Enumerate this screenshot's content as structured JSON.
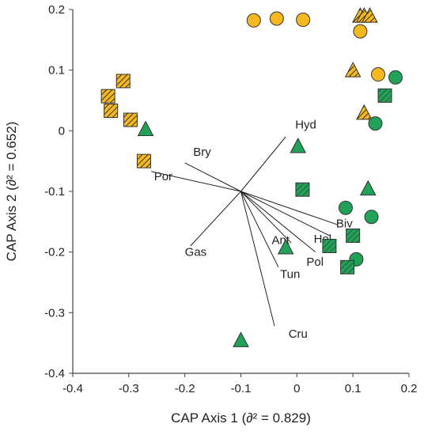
{
  "chart_data": {
    "type": "scatter",
    "title": "",
    "xlabel": "CAP Axis 1 (∂² = 0.829)",
    "ylabel": "CAP Axis 2 (∂² = 0.652)",
    "xlim": [
      -0.4,
      0.2
    ],
    "ylim": [
      -0.4,
      0.2
    ],
    "xticks": [
      "-0.4",
      "-0.3",
      "-0.2",
      "-0.1",
      "0",
      "0.1",
      "0.2"
    ],
    "yticks": [
      "0.2",
      "0.1",
      "0",
      "-0.1",
      "-0.2",
      "-0.3",
      "-0.4"
    ],
    "grid": false,
    "colors": {
      "yellow": "#f5b820",
      "green": "#22a158",
      "edge": "#333333"
    },
    "series": [
      {
        "marker": "circle",
        "fill": "yellow",
        "hatch": false,
        "points": [
          [
            -0.077,
            0.182
          ],
          [
            -0.036,
            0.185
          ],
          [
            0.011,
            0.183
          ],
          [
            0.113,
            0.164
          ],
          [
            0.145,
            0.093
          ]
        ]
      },
      {
        "marker": "triangle",
        "fill": "yellow",
        "hatch": true,
        "points": [
          [
            0.113,
            0.19
          ],
          [
            0.12,
            0.19
          ],
          [
            0.13,
            0.19
          ],
          [
            0.1,
            0.1
          ],
          [
            0.12,
            0.03
          ]
        ]
      },
      {
        "marker": "square",
        "fill": "yellow",
        "hatch": true,
        "points": [
          [
            -0.31,
            0.082
          ],
          [
            -0.337,
            0.057
          ],
          [
            -0.332,
            0.033
          ],
          [
            -0.297,
            0.018
          ],
          [
            -0.273,
            -0.05
          ]
        ]
      },
      {
        "marker": "circle",
        "fill": "green",
        "hatch": false,
        "points": [
          [
            0.176,
            0.088
          ],
          [
            0.14,
            0.012
          ],
          [
            0.087,
            -0.127
          ],
          [
            0.133,
            -0.142
          ],
          [
            0.106,
            -0.212
          ]
        ]
      },
      {
        "marker": "triangle",
        "fill": "green",
        "hatch": false,
        "points": [
          [
            -0.27,
            0.003
          ],
          [
            0.002,
            -0.025
          ],
          [
            0.127,
            -0.095
          ],
          [
            -0.02,
            -0.192
          ],
          [
            -0.1,
            -0.345
          ]
        ]
      },
      {
        "marker": "square",
        "fill": "green",
        "hatch": true,
        "points": [
          [
            0.157,
            0.058
          ],
          [
            0.01,
            -0.097
          ],
          [
            0.058,
            -0.19
          ],
          [
            0.1,
            -0.173
          ],
          [
            0.09,
            -0.225
          ]
        ]
      }
    ],
    "vectors": {
      "origin": [
        -0.1,
        -0.1
      ],
      "items": [
        {
          "label": "Hyd",
          "end": [
            -0.02,
            -0.01
          ],
          "label_at": [
            -0.003,
            0.01
          ]
        },
        {
          "label": "Bry",
          "end": [
            -0.2,
            -0.053
          ],
          "label_at": [
            -0.185,
            -0.035
          ]
        },
        {
          "label": "Por",
          "end": [
            -0.26,
            -0.067
          ],
          "label_at": [
            -0.255,
            -0.075
          ]
        },
        {
          "label": "Gas",
          "end": [
            -0.19,
            -0.19
          ],
          "label_at": [
            -0.2,
            -0.2
          ]
        },
        {
          "label": "Biv",
          "end": [
            0.073,
            -0.155
          ],
          "label_at": [
            0.07,
            -0.153
          ]
        },
        {
          "label": "Hol",
          "end": [
            0.058,
            -0.173
          ],
          "label_at": [
            0.03,
            -0.178
          ]
        },
        {
          "label": "Ant",
          "end": [
            -0.01,
            -0.185
          ],
          "label_at": [
            -0.045,
            -0.18
          ]
        },
        {
          "label": "Pol",
          "end": [
            0.033,
            -0.2
          ],
          "label_at": [
            0.017,
            -0.216
          ]
        },
        {
          "label": "Tun",
          "end": [
            -0.033,
            -0.225
          ],
          "label_at": [
            -0.03,
            -0.236
          ]
        },
        {
          "label": "Cru",
          "end": [
            -0.04,
            -0.322
          ],
          "label_at": [
            -0.015,
            -0.335
          ]
        }
      ]
    }
  }
}
